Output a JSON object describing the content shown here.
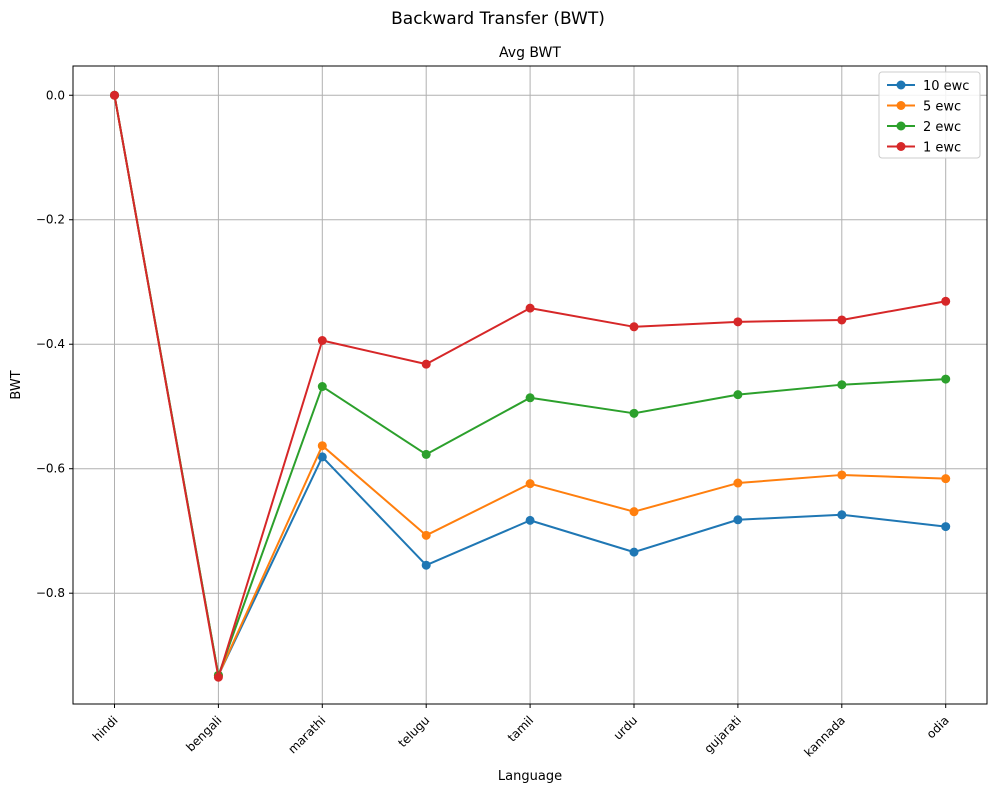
{
  "chart_data": {
    "type": "line",
    "suptitle": "Backward Transfer (BWT)",
    "title": "Avg BWT",
    "xlabel": "Language",
    "ylabel": "BWT",
    "categories": [
      "hindi",
      "bengali",
      "marathi",
      "telugu",
      "tamil",
      "urdu",
      "gujarati",
      "kannada",
      "odia"
    ],
    "ylim": [
      -0.978,
      0.047
    ],
    "yticks": [
      0.0,
      -0.2,
      -0.4,
      -0.6,
      -0.8
    ],
    "ytick_labels": [
      "0.0",
      "−0.2",
      "−0.4",
      "−0.6",
      "−0.8"
    ],
    "grid": true,
    "legend_position": "top-right",
    "series": [
      {
        "name": "10 ewc",
        "color": "#1f77b4",
        "values": [
          0.0,
          -0.932,
          -0.581,
          -0.755,
          -0.683,
          -0.734,
          -0.682,
          -0.674,
          -0.693
        ]
      },
      {
        "name": "5 ewc",
        "color": "#ff7f0e",
        "values": [
          0.0,
          -0.932,
          -0.563,
          -0.707,
          -0.624,
          -0.669,
          -0.623,
          -0.61,
          -0.616
        ]
      },
      {
        "name": "2 ewc",
        "color": "#2ca02c",
        "values": [
          0.0,
          -0.932,
          -0.468,
          -0.577,
          -0.486,
          -0.511,
          -0.481,
          -0.465,
          -0.456
        ]
      },
      {
        "name": "1 ewc",
        "color": "#d62728",
        "values": [
          0.0,
          -0.935,
          -0.394,
          -0.432,
          -0.342,
          -0.372,
          -0.364,
          -0.361,
          -0.331
        ]
      }
    ]
  }
}
